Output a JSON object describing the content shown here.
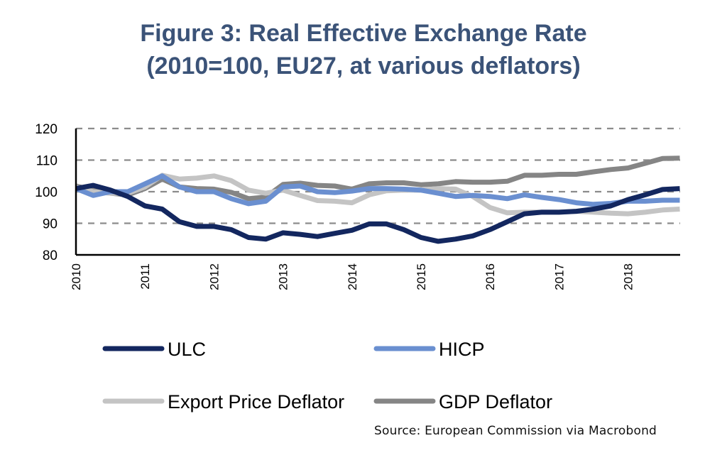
{
  "chart_data": {
    "type": "line",
    "title": "Figure 3: Real Effective Exchange Rate",
    "subtitle": "(2010=100, EU27, at various deflators)",
    "xlabel": "",
    "ylabel": "",
    "ylim": [
      80,
      120
    ],
    "yticks": [
      80,
      90,
      100,
      110,
      120
    ],
    "xlim": [
      2010.0,
      2018.75
    ],
    "xticks": [
      "2010",
      "2011",
      "2012",
      "2013",
      "2014",
      "2015",
      "2016",
      "2017",
      "2018"
    ],
    "x_frequency": "quarterly",
    "x_start": "2010Q1",
    "x_end": "2018Q4",
    "grid": "horizontal dashed",
    "legend_position": "bottom",
    "source": "Source: European Commission via Macrobond",
    "series": [
      {
        "name": "ULC",
        "color": "#13275f",
        "values": [
          101,
          102,
          100.5,
          98.5,
          95.5,
          94.5,
          90.5,
          89,
          89,
          88,
          85.5,
          85,
          87,
          86.5,
          85.8,
          86.8,
          87.8,
          89.8,
          89.8,
          88,
          85.5,
          84.3,
          85,
          86,
          88,
          90.5,
          93,
          93.5,
          93.5,
          93.8,
          94.5,
          95.5,
          97.5,
          99,
          100.7,
          101
        ]
      },
      {
        "name": "HICP",
        "color": "#6a8fd0",
        "values": [
          101,
          98.8,
          100,
          100,
          102.5,
          105,
          101.5,
          100,
          100,
          97.8,
          96.2,
          97,
          101.5,
          101.8,
          100,
          99.7,
          100.2,
          101,
          101,
          100.8,
          100.5,
          99.5,
          98.5,
          98.8,
          98.5,
          97.8,
          99,
          98.2,
          97.5,
          96.5,
          96,
          96.3,
          97,
          97,
          97.3,
          97.3
        ]
      },
      {
        "name": "Export Price Deflator",
        "color": "#c4c4c4",
        "values": [
          101.5,
          100,
          99.5,
          99.5,
          101.5,
          105.2,
          104,
          104.3,
          105,
          103.5,
          100.5,
          99.5,
          100.5,
          98.8,
          97.2,
          97,
          96.5,
          99,
          100.3,
          100.5,
          100.5,
          101,
          100.8,
          98.5,
          95,
          93.3,
          93.5,
          93.5,
          93.5,
          93.8,
          93.5,
          93.2,
          93,
          93.5,
          94.2,
          94.5
        ]
      },
      {
        "name": "GDP Deflator",
        "color": "#858585",
        "values": [
          101.8,
          100.5,
          99.5,
          99,
          101,
          104,
          101.5,
          101,
          100.8,
          99.8,
          97.8,
          98.3,
          102.3,
          102.7,
          102,
          101.8,
          100.8,
          102.5,
          102.8,
          102.8,
          102.2,
          102.5,
          103.2,
          103,
          103,
          103.3,
          105.2,
          105.2,
          105.5,
          105.5,
          106.3,
          107,
          107.5,
          109,
          110.5,
          110.6
        ]
      }
    ],
    "draw_order": [
      "GDP Deflator",
      "Export Price Deflator",
      "HICP",
      "ULC"
    ]
  }
}
